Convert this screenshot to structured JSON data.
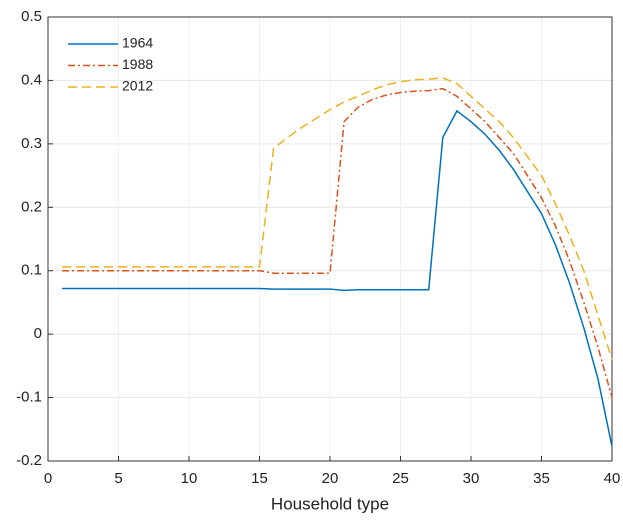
{
  "chart_data": {
    "type": "line",
    "xlabel": "Household type",
    "x": [
      1,
      2,
      3,
      4,
      5,
      6,
      7,
      8,
      9,
      10,
      11,
      12,
      13,
      14,
      15,
      16,
      17,
      18,
      19,
      20,
      21,
      22,
      23,
      24,
      25,
      26,
      27,
      28,
      29,
      30,
      31,
      32,
      33,
      34,
      35,
      36,
      37,
      38,
      39,
      40
    ],
    "series": [
      {
        "name": "1964",
        "color": "#0072bd",
        "linestyle": "solid",
        "values": [
          0.072,
          0.072,
          0.072,
          0.072,
          0.072,
          0.072,
          0.072,
          0.072,
          0.072,
          0.072,
          0.072,
          0.072,
          0.072,
          0.072,
          0.072,
          0.071,
          0.071,
          0.071,
          0.071,
          0.071,
          0.069,
          0.07,
          0.07,
          0.07,
          0.07,
          0.07,
          0.07,
          0.31,
          0.352,
          0.335,
          0.315,
          0.29,
          0.26,
          0.225,
          0.19,
          0.14,
          0.08,
          0.01,
          -0.07,
          -0.177
        ]
      },
      {
        "name": "1988",
        "color": "#d95319",
        "linestyle": "dashdot",
        "values": [
          0.1,
          0.1,
          0.1,
          0.1,
          0.1,
          0.1,
          0.1,
          0.1,
          0.1,
          0.1,
          0.1,
          0.1,
          0.1,
          0.1,
          0.1,
          0.096,
          0.096,
          0.096,
          0.096,
          0.096,
          0.335,
          0.358,
          0.37,
          0.377,
          0.381,
          0.383,
          0.384,
          0.387,
          0.375,
          0.355,
          0.335,
          0.31,
          0.285,
          0.25,
          0.215,
          0.17,
          0.115,
          0.05,
          -0.02,
          -0.1
        ]
      },
      {
        "name": "2012",
        "color": "#edb120",
        "linestyle": "dashed",
        "values": [
          0.106,
          0.106,
          0.106,
          0.106,
          0.106,
          0.106,
          0.106,
          0.106,
          0.106,
          0.106,
          0.106,
          0.106,
          0.106,
          0.106,
          0.106,
          0.293,
          0.31,
          0.326,
          0.34,
          0.354,
          0.366,
          0.375,
          0.385,
          0.393,
          0.398,
          0.401,
          0.402,
          0.404,
          0.395,
          0.375,
          0.355,
          0.335,
          0.31,
          0.28,
          0.25,
          0.205,
          0.155,
          0.1,
          0.03,
          -0.04
        ]
      }
    ],
    "xlim": [
      0,
      40
    ],
    "xticks": [
      0,
      5,
      10,
      15,
      20,
      25,
      30,
      35,
      40
    ],
    "ylim": [
      -0.2,
      0.5
    ],
    "yticks": [
      -0.2,
      -0.1,
      0,
      0.1,
      0.2,
      0.3,
      0.4,
      0.5
    ],
    "grid": true,
    "legend": "upper-left"
  }
}
